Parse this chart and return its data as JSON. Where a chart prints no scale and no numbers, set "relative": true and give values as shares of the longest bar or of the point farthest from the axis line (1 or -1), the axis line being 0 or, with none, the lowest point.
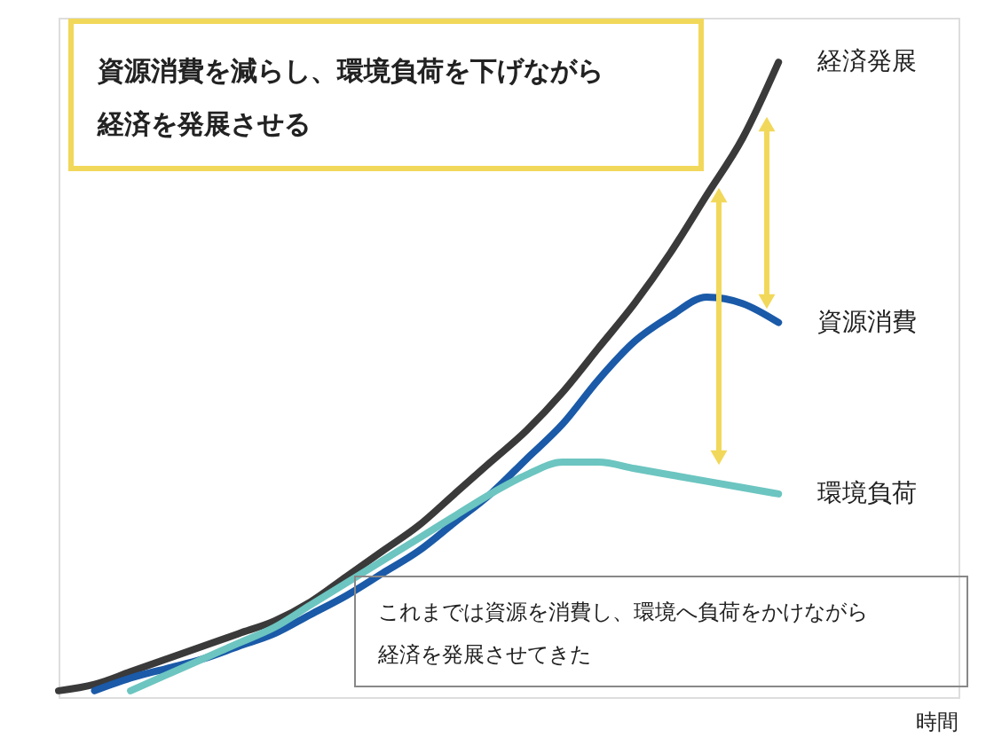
{
  "chart_data": {
    "type": "line",
    "relative": true,
    "xlabel": "時間",
    "categories": [
      null,
      null,
      null,
      null,
      null,
      null,
      null,
      null,
      null,
      null,
      null,
      null,
      null,
      null,
      null,
      null,
      null,
      null,
      null,
      null,
      null,
      null,
      null,
      null,
      null,
      null
    ],
    "series": [
      {
        "name": "経済発展",
        "color": "#3a3a3a",
        "values": [
          0.01,
          0.02,
          0.04,
          0.06,
          0.08,
          0.1,
          0.12,
          0.15,
          0.19,
          0.23,
          0.27,
          0.32,
          0.37,
          0.42,
          0.48,
          0.55,
          0.62,
          0.7,
          0.79,
          0.88,
          1.0,
          null,
          null,
          null,
          null,
          null
        ]
      },
      {
        "name": "資源消費",
        "color": "#1a5aa8",
        "values": [
          null,
          0.01,
          0.03,
          0.045,
          0.06,
          0.08,
          0.1,
          0.13,
          0.16,
          0.195,
          0.23,
          0.275,
          0.32,
          0.375,
          0.43,
          0.5,
          0.56,
          0.6,
          0.63,
          0.62,
          0.59,
          null,
          null,
          null,
          null,
          null
        ]
      },
      {
        "name": "環境負荷",
        "color": "#6cc5c0",
        "values": [
          null,
          null,
          0.01,
          0.035,
          0.06,
          0.085,
          0.11,
          0.145,
          0.18,
          0.215,
          0.25,
          0.285,
          0.32,
          0.35,
          0.37,
          0.37,
          0.36,
          0.35,
          0.34,
          0.33,
          0.32,
          null,
          null,
          null,
          null,
          null
        ]
      }
    ],
    "annotations": [
      "資源消費を減らし、環境負荷を下げながら経済を発展させる",
      "これまでは資源を消費し、環境へ負荷をかけながら経済を発展させてきた"
    ]
  }
}
